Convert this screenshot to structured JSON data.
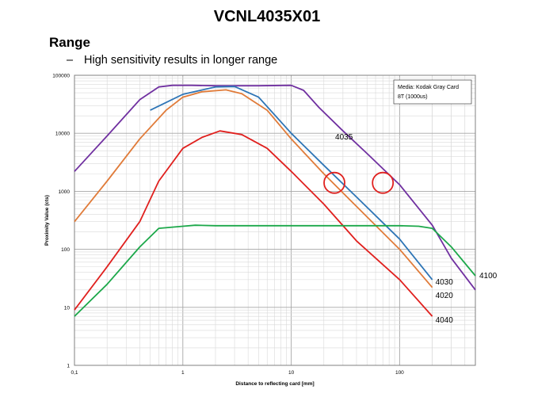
{
  "slide": {
    "title": "VCNL4035X01",
    "heading": "Range",
    "bullet_marker": "–",
    "bullet_text": "High sensitivity results in longer range"
  },
  "chart_data": {
    "type": "line",
    "xscale": "log",
    "yscale": "log",
    "xlim": [
      0.1,
      500
    ],
    "ylim": [
      1,
      100000
    ],
    "xlabel": "Distance to reflecting card [mm]",
    "ylabel": "Proximity Value (cts)",
    "xticks": [
      "0,1",
      "1",
      "10",
      "100"
    ],
    "yticks": [
      "1",
      "10",
      "100",
      "1000",
      "10000",
      "100000"
    ],
    "grid": true,
    "legend_box": {
      "line1": "Media: Kodak Gray Card",
      "line2": "8T (1000us)",
      "placement": "top-right"
    },
    "series": [
      {
        "name": "4035",
        "color": "#7030a0",
        "points": [
          [
            0.1,
            2200
          ],
          [
            0.2,
            9000
          ],
          [
            0.4,
            38000
          ],
          [
            0.6,
            63000
          ],
          [
            0.8,
            67000
          ],
          [
            1.2,
            67000
          ],
          [
            2,
            66000
          ],
          [
            5,
            66000
          ],
          [
            10,
            67000
          ],
          [
            13,
            55000
          ],
          [
            18,
            28000
          ],
          [
            30,
            11000
          ],
          [
            50,
            4500
          ],
          [
            100,
            1300
          ],
          [
            200,
            260
          ],
          [
            300,
            70
          ],
          [
            500,
            20
          ]
        ]
      },
      {
        "name": "4030",
        "color": "#2e75b6",
        "points": [
          [
            0.5,
            25000
          ],
          [
            1,
            47000
          ],
          [
            2,
            63000
          ],
          [
            3,
            64000
          ],
          [
            5,
            42000
          ],
          [
            10,
            10000
          ],
          [
            20,
            2800
          ],
          [
            40,
            800
          ],
          [
            100,
            150
          ],
          [
            200,
            30
          ]
        ]
      },
      {
        "name": "4020",
        "color": "#e07b39",
        "points": [
          [
            0.1,
            300
          ],
          [
            0.2,
            1500
          ],
          [
            0.4,
            8000
          ],
          [
            0.7,
            25000
          ],
          [
            1,
            42000
          ],
          [
            1.5,
            52000
          ],
          [
            2.5,
            56000
          ],
          [
            3.5,
            48000
          ],
          [
            6,
            25000
          ],
          [
            10,
            8000
          ],
          [
            20,
            2000
          ],
          [
            40,
            550
          ],
          [
            100,
            100
          ],
          [
            200,
            22
          ]
        ]
      },
      {
        "name": "4040",
        "color": "#e0201e",
        "points": [
          [
            0.1,
            9
          ],
          [
            0.2,
            50
          ],
          [
            0.4,
            300
          ],
          [
            0.6,
            1500
          ],
          [
            1,
            5500
          ],
          [
            1.5,
            8500
          ],
          [
            2.2,
            11000
          ],
          [
            3.5,
            9500
          ],
          [
            6,
            5500
          ],
          [
            10,
            2200
          ],
          [
            20,
            600
          ],
          [
            40,
            140
          ],
          [
            100,
            30
          ],
          [
            200,
            7
          ]
        ]
      },
      {
        "name": "4100",
        "color": "#1ca84a",
        "points": [
          [
            0.1,
            7
          ],
          [
            0.2,
            25
          ],
          [
            0.4,
            110
          ],
          [
            0.6,
            230
          ],
          [
            1,
            250
          ],
          [
            1.3,
            260
          ],
          [
            2,
            255
          ],
          [
            10,
            255
          ],
          [
            50,
            255
          ],
          [
            100,
            255
          ],
          [
            150,
            250
          ],
          [
            200,
            230
          ],
          [
            300,
            110
          ],
          [
            500,
            35
          ]
        ]
      }
    ],
    "annotations": [
      {
        "shape": "circle",
        "x": 25,
        "y": 1400
      },
      {
        "shape": "circle",
        "x": 70,
        "y": 1400
      }
    ]
  }
}
